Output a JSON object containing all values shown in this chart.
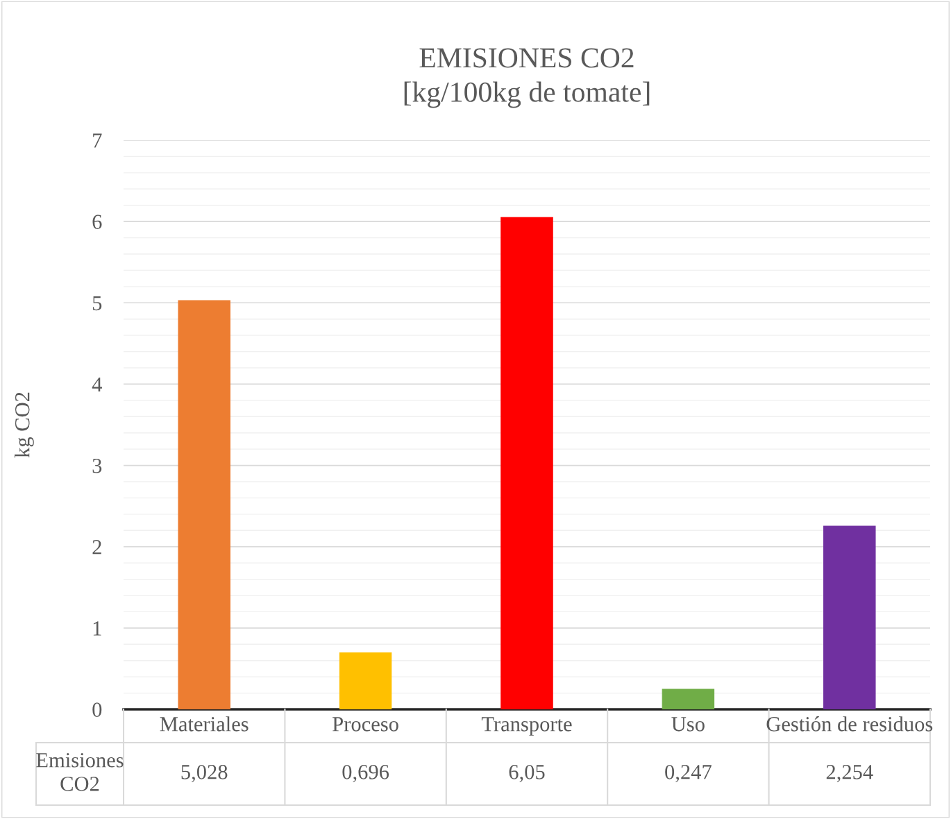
{
  "chart_data": {
    "type": "bar",
    "title": "EMISIONES CO2\n[kg/100kg de tomate]",
    "ylabel": "kg CO2",
    "categories": [
      "Materiales",
      "Proceso",
      "Transporte",
      "Uso",
      "Gestión de residuos"
    ],
    "series": [
      {
        "name": "Emisiones CO2",
        "colors": [
          "#ed7d31",
          "#ffc000",
          "#ff0000",
          "#70ad47",
          "#7030a0"
        ],
        "values": [
          5.028,
          0.696,
          6.05,
          0.247,
          2.254
        ],
        "value_labels": [
          "5,028",
          "0,696",
          "6,05",
          "0,247",
          "2,254"
        ]
      }
    ],
    "ylim": [
      0,
      7
    ],
    "yticks": [
      0,
      {
        "value": 0.2,
        "label": null
      },
      {
        "value": 0.4,
        "label": null
      },
      {
        "value": 0.6,
        "label": null
      },
      {
        "value": 0.8,
        "label": null
      },
      1,
      {
        "value": 1.2,
        "label": null
      },
      {
        "value": 1.4,
        "label": null
      },
      {
        "value": 1.6,
        "label": null
      },
      {
        "value": 1.8,
        "label": null
      },
      2,
      {
        "value": 2.2,
        "label": null
      },
      {
        "value": 2.4,
        "label": null
      },
      {
        "value": 2.6,
        "label": null
      },
      {
        "value": 2.8,
        "label": null
      },
      3,
      {
        "value": 3.2,
        "label": null
      },
      {
        "value": 3.4,
        "label": null
      },
      {
        "value": 3.6,
        "label": null
      },
      {
        "value": 3.8,
        "label": null
      },
      4,
      {
        "value": 4.2,
        "label": null
      },
      {
        "value": 4.4,
        "label": null
      },
      {
        "value": 4.6,
        "label": null
      },
      {
        "value": 4.8,
        "label": null
      },
      5,
      {
        "value": 5.2,
        "label": null
      },
      {
        "value": 5.4,
        "label": null
      },
      {
        "value": 5.6,
        "label": null
      },
      {
        "value": 5.8,
        "label": null
      },
      6,
      {
        "value": 6.2,
        "label": null
      },
      {
        "value": 6.4,
        "label": null
      },
      {
        "value": 6.6,
        "label": null
      },
      {
        "value": 6.8,
        "label": null
      },
      7
    ],
    "grid": "y"
  }
}
